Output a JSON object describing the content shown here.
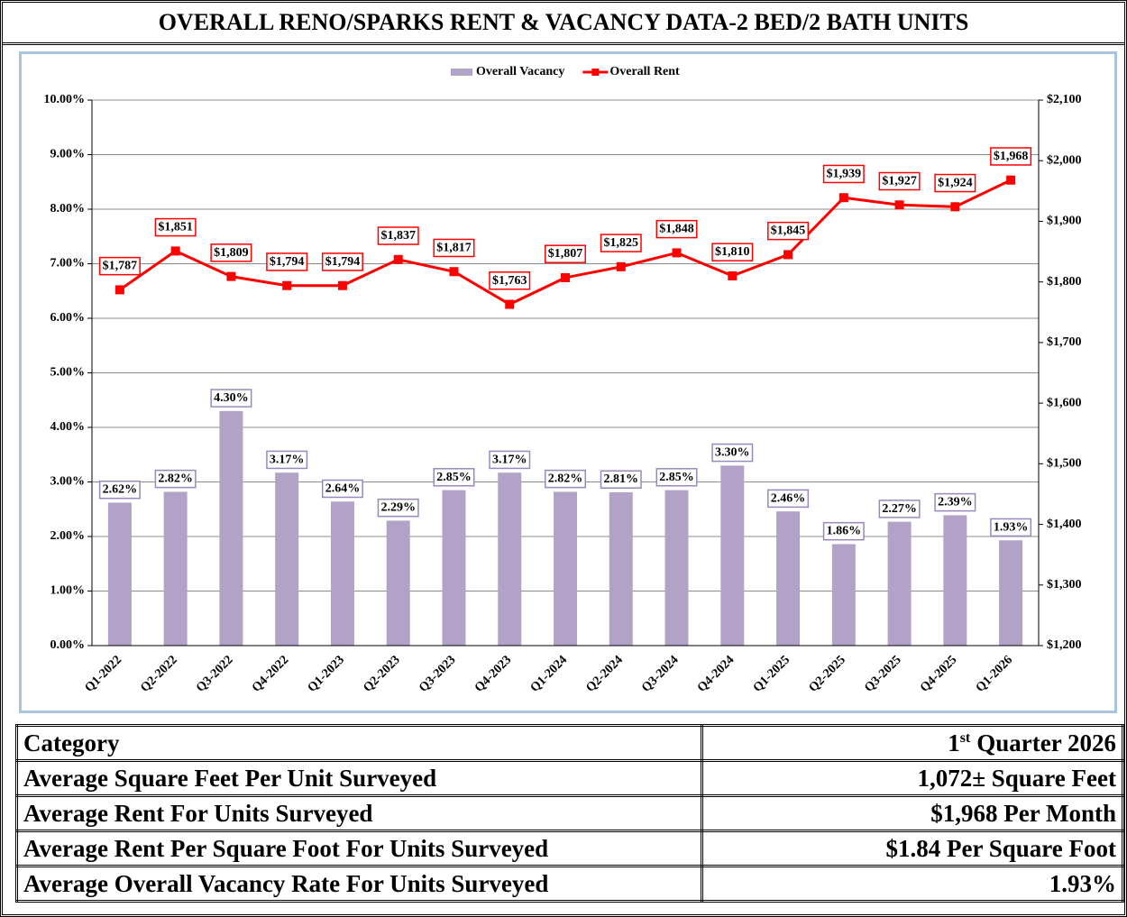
{
  "title": "OVERALL RENO/SPARKS RENT & VACANCY DATA-2 BED/2 BATH UNITS",
  "chart_data": {
    "type": "bar",
    "categories": [
      "Q1-2022",
      "Q2-2022",
      "Q3-2022",
      "Q4-2022",
      "Q1-2023",
      "Q2-2023",
      "Q3-2023",
      "Q4-2023",
      "Q1-2024",
      "Q2-2024",
      "Q3-2024",
      "Q4-2024",
      "Q1-2025",
      "Q2-2025",
      "Q3-2025",
      "Q4-2025",
      "Q1-2026"
    ],
    "series": [
      {
        "name": "Overall Vacancy",
        "color": "#b3a2c7",
        "label_border": "#9a88bd",
        "values": [
          2.62,
          2.82,
          4.3,
          3.17,
          2.64,
          2.29,
          2.85,
          3.17,
          2.82,
          2.81,
          2.85,
          3.3,
          2.46,
          1.86,
          2.27,
          2.39,
          1.93
        ],
        "value_labels": [
          "2.62%",
          "2.82%",
          "4.30%",
          "3.17%",
          "2.64%",
          "2.29%",
          "2.85%",
          "3.17%",
          "2.82%",
          "2.81%",
          "2.85%",
          "3.30%",
          "2.46%",
          "1.86%",
          "2.27%",
          "2.39%",
          "1.93%"
        ]
      },
      {
        "name": "Overall Rent",
        "type": "line",
        "axis": "y2",
        "color": "#ff0000",
        "label_border": "#ff0000",
        "values": [
          1787,
          1851,
          1809,
          1794,
          1794,
          1837,
          1817,
          1763,
          1807,
          1825,
          1848,
          1810,
          1845,
          1939,
          1927,
          1924,
          1968
        ],
        "value_labels": [
          "$1,787",
          "$1,851",
          "$1,809",
          "$1,794",
          "$1,794",
          "$1,837",
          "$1,817",
          "$1,763",
          "$1,807",
          "$1,825",
          "$1,848",
          "$1,810",
          "$1,845",
          "$1,939",
          "$1,927",
          "$1,924",
          "$1,968"
        ]
      }
    ],
    "ylim": [
      0,
      10
    ],
    "yticks": [
      {
        "value": 0,
        "label": "0.00%"
      },
      {
        "value": 1,
        "label": "1.00%"
      },
      {
        "value": 2,
        "label": "2.00%"
      },
      {
        "value": 3,
        "label": "3.00%"
      },
      {
        "value": 4,
        "label": "4.00%"
      },
      {
        "value": 5,
        "label": "5.00%"
      },
      {
        "value": 6,
        "label": "6.00%"
      },
      {
        "value": 7,
        "label": "7.00%"
      },
      {
        "value": 8,
        "label": "8.00%"
      },
      {
        "value": 9,
        "label": "9.00%"
      },
      {
        "value": 10,
        "label": "10.00%"
      }
    ],
    "y2lim": [
      1200,
      2100
    ],
    "y2ticks": [
      {
        "value": 1200,
        "label": "$1,200"
      },
      {
        "value": 1300,
        "label": "$1,300"
      },
      {
        "value": 1400,
        "label": "$1,400"
      },
      {
        "value": 1500,
        "label": "$1,500"
      },
      {
        "value": 1600,
        "label": "$1,600"
      },
      {
        "value": 1700,
        "label": "$1,700"
      },
      {
        "value": 1800,
        "label": "$1,800"
      },
      {
        "value": 1900,
        "label": "$1,900"
      },
      {
        "value": 2000,
        "label": "$2,000"
      },
      {
        "value": 2100,
        "label": "$2,100"
      }
    ],
    "grid": true,
    "legend": "top"
  },
  "table": {
    "header": [
      "Category",
      {
        "lead": "1",
        "sup": "st",
        "tail": "Quarter 2026"
      }
    ],
    "rows": [
      [
        "Average Square Feet Per Unit Surveyed",
        "1,072± Square Feet"
      ],
      [
        "Average Rent For Units Surveyed",
        "$1,968 Per Month"
      ],
      [
        "Average Rent Per Square Foot For Units Surveyed",
        "$1.84 Per Square Foot"
      ],
      [
        "Average Overall Vacancy Rate For Units Surveyed",
        "1.93%"
      ]
    ]
  }
}
